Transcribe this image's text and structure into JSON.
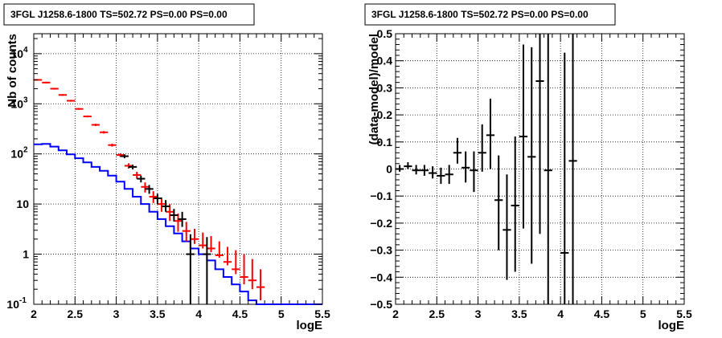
{
  "chart_data": [
    {
      "type": "line",
      "title": "3FGL J1258.6-1800 TS=502.72 PS=0.00 PS=0.00",
      "xlabel": "logE",
      "ylabel": "Nb of counts",
      "xlim": [
        2,
        5.5
      ],
      "ylim": [
        0.1,
        25000
      ],
      "ylog": true,
      "grid": true,
      "xticks": [
        "2",
        "2.5",
        "3",
        "3.5",
        "4",
        "4.5",
        "5",
        "5.5"
      ],
      "yticks": [
        {
          "value": 0.1,
          "label": "10",
          "exp": "-1"
        },
        {
          "value": 1,
          "label": "1",
          "exp": ""
        },
        {
          "value": 10,
          "label": "10",
          "exp": ""
        },
        {
          "value": 100,
          "label": "10",
          "exp": "2"
        },
        {
          "value": 1000,
          "label": "10",
          "exp": "3"
        },
        {
          "value": 10000,
          "label": "10",
          "exp": "4"
        }
      ],
      "series": [
        {
          "color": "#0000ff",
          "style": "step",
          "edges": [
            2.0,
            2.1,
            2.2,
            2.3,
            2.4,
            2.5,
            2.6,
            2.7,
            2.8,
            2.9,
            3.0,
            3.1,
            3.2,
            3.3,
            3.4,
            3.5,
            3.6,
            3.7,
            3.8,
            3.9,
            4.0,
            4.1,
            4.2,
            4.3,
            4.4,
            4.5,
            4.6,
            4.7,
            4.8,
            5.0,
            5.5
          ],
          "values": [
            155,
            158,
            140,
            118,
            98,
            82,
            68,
            55,
            46,
            37,
            28,
            20,
            14,
            10,
            7,
            5,
            3.6,
            2.6,
            1.8,
            1.3,
            1.0,
            0.75,
            0.5,
            0.35,
            0.25,
            0.18,
            0.12,
            0.1,
            0.1,
            0.1
          ]
        },
        {
          "color": "#ff0000",
          "style": "errorbar",
          "x": [
            2.05,
            2.15,
            2.25,
            2.35,
            2.45,
            2.55,
            2.65,
            2.75,
            2.85,
            2.95,
            3.05,
            3.15,
            3.25,
            3.35,
            3.45,
            3.55,
            3.65,
            3.75,
            3.85,
            3.95,
            4.05,
            4.15,
            4.25,
            4.35,
            4.45,
            4.55,
            4.65,
            4.75
          ],
          "y": [
            3000,
            2650,
            2000,
            1500,
            1150,
            790,
            560,
            380,
            270,
            150,
            95,
            58,
            38,
            22,
            14,
            10,
            7,
            4.6,
            2.9,
            2.0,
            1.5,
            1.3,
            0.95,
            0.7,
            0.5,
            0.35,
            0.3,
            0.22
          ],
          "yerr_low": [
            2900,
            2550,
            1920,
            1440,
            1100,
            760,
            535,
            360,
            255,
            140,
            87,
            51,
            32,
            17,
            10.5,
            7,
            4.6,
            2.8,
            1.8,
            1.6,
            1.3,
            1.1,
            0.85,
            0.6,
            0.4,
            0.25,
            0.2,
            0.12
          ],
          "yerr_high": [
            3100,
            2750,
            2080,
            1560,
            1200,
            820,
            585,
            400,
            285,
            160,
            103,
            65,
            44,
            27,
            18,
            13.5,
            10,
            6.5,
            4.4,
            3.2,
            2.7,
            2.3,
            1.8,
            1.4,
            1.2,
            1.0,
            0.8,
            0.5
          ]
        },
        {
          "color": "#000000",
          "style": "errorbar",
          "x": [
            3.1,
            3.2,
            3.3,
            3.4,
            3.5,
            3.6,
            3.7,
            3.8,
            3.9,
            4.1
          ],
          "y": [
            90,
            55,
            32,
            20,
            13,
            9,
            6,
            5,
            1.0,
            1.0
          ],
          "yerr_low": [
            82,
            49,
            27,
            16,
            10,
            7,
            4.5,
            3.5,
            0.1,
            0.1
          ],
          "yerr_high": [
            98,
            61,
            37,
            24,
            16,
            12,
            8,
            7,
            2.5,
            2.2
          ]
        }
      ]
    },
    {
      "type": "scatter",
      "title": "3FGL J1258.6-1800 TS=502.72 PS=0.00 PS=0.00",
      "xlabel": "logE",
      "ylabel": "(data-model)/model",
      "xlim": [
        2,
        5.5
      ],
      "ylim": [
        -0.5,
        0.5
      ],
      "grid": true,
      "xticks": [
        "2",
        "2.5",
        "3",
        "3.5",
        "4",
        "4.5",
        "5",
        "5.5"
      ],
      "yticks": [
        "−0.5",
        "−0.4",
        "−0.3",
        "−0.2",
        "−0.1",
        "0",
        "0.1",
        "0.2",
        "0.3",
        "0.4",
        "0.5"
      ],
      "series": [
        {
          "color": "#000000",
          "style": "errorbar",
          "x": [
            2.05,
            2.15,
            2.25,
            2.35,
            2.45,
            2.55,
            2.65,
            2.75,
            2.85,
            2.95,
            3.05,
            3.15,
            3.25,
            3.35,
            3.45,
            3.55,
            3.65,
            3.75,
            3.85,
            4.05,
            4.15
          ],
          "y": [
            0.0,
            0.01,
            -0.005,
            -0.005,
            -0.015,
            -0.025,
            -0.02,
            0.06,
            0.005,
            -0.005,
            0.06,
            0.125,
            -0.115,
            -0.225,
            -0.135,
            0.12,
            0.045,
            0.325,
            -0.005,
            -0.31,
            0.03
          ],
          "yerr_low": [
            -0.01,
            0.0,
            -0.02,
            -0.025,
            -0.035,
            -0.055,
            -0.055,
            0.02,
            -0.05,
            -0.085,
            -0.01,
            0.0,
            -0.3,
            -0.41,
            -0.38,
            -0.22,
            -0.35,
            -0.24,
            -0.5,
            -0.5,
            -0.5
          ],
          "yerr_high": [
            0.015,
            0.025,
            0.015,
            0.015,
            0.01,
            0.005,
            0.015,
            0.115,
            0.065,
            0.065,
            0.165,
            0.26,
            0.05,
            -0.02,
            0.12,
            0.46,
            0.45,
            0.5,
            0.5,
            0.43,
            0.5
          ]
        }
      ]
    }
  ]
}
